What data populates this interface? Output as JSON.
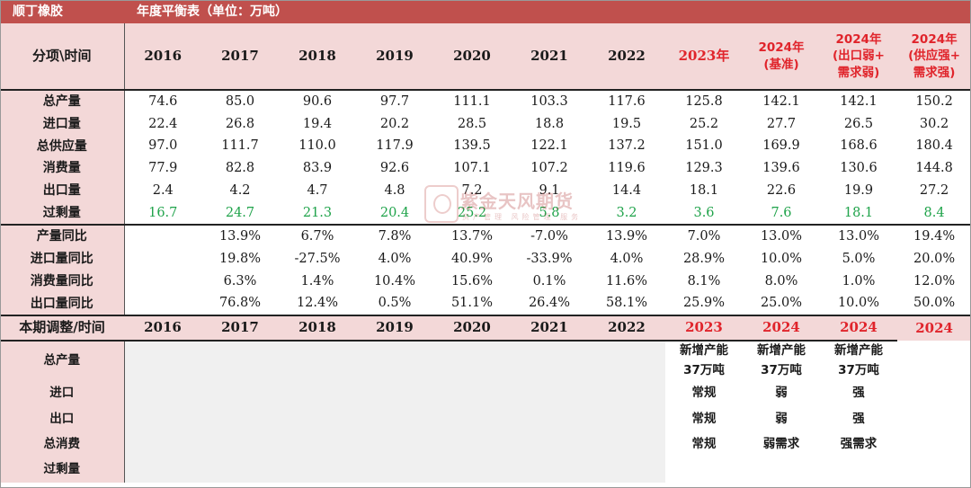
{
  "title": {
    "left": "顺丁橡胶",
    "right": "年度平衡表（单位：万吨）"
  },
  "header": {
    "label": "分项\\时间",
    "years": [
      {
        "text": "2016",
        "red": false
      },
      {
        "text": "2017",
        "red": false
      },
      {
        "text": "2018",
        "red": false
      },
      {
        "text": "2019",
        "red": false
      },
      {
        "text": "2020",
        "red": false
      },
      {
        "text": "2021",
        "red": false
      },
      {
        "text": "2022",
        "red": false
      },
      {
        "text": "2023年",
        "red": true
      },
      {
        "text": "2024年\n(基准)",
        "red": true
      },
      {
        "text": "2024年\n(出口弱+\n需求弱)",
        "red": true
      },
      {
        "text": "2024年\n(供应强+\n需求强)",
        "red": true
      }
    ]
  },
  "balance_rows": [
    {
      "label": "总产量",
      "values": [
        "74.6",
        "85.0",
        "90.6",
        "97.7",
        "111.1",
        "103.3",
        "117.6",
        "125.8",
        "142.1",
        "142.1",
        "150.2"
      ]
    },
    {
      "label": "进口量",
      "values": [
        "22.4",
        "26.8",
        "19.4",
        "20.2",
        "28.5",
        "18.8",
        "19.5",
        "25.2",
        "27.7",
        "26.5",
        "30.2"
      ]
    },
    {
      "label": "总供应量",
      "values": [
        "97.0",
        "111.7",
        "110.0",
        "117.9",
        "139.5",
        "122.1",
        "137.2",
        "151.0",
        "169.9",
        "168.6",
        "180.4"
      ]
    },
    {
      "label": "消费量",
      "values": [
        "77.9",
        "82.8",
        "83.9",
        "92.6",
        "107.1",
        "107.2",
        "119.6",
        "129.3",
        "139.6",
        "130.6",
        "144.8"
      ]
    },
    {
      "label": "出口量",
      "values": [
        "2.4",
        "4.2",
        "4.7",
        "4.8",
        "7.2",
        "9.1",
        "14.4",
        "18.1",
        "22.6",
        "19.9",
        "27.2"
      ]
    },
    {
      "label": "过剩量",
      "values": [
        "16.7",
        "24.7",
        "21.3",
        "20.4",
        "25.2",
        "5.8",
        "3.2",
        "3.6",
        "7.6",
        "18.1",
        "8.4"
      ],
      "green": true
    }
  ],
  "yoy_rows": [
    {
      "label": "产量同比",
      "values": [
        "",
        "13.9%",
        "6.7%",
        "7.8%",
        "13.7%",
        "-7.0%",
        "13.9%",
        "7.0%",
        "13.0%",
        "13.0%",
        "19.4%"
      ]
    },
    {
      "label": "进口量同比",
      "values": [
        "",
        "19.8%",
        "-27.5%",
        "4.0%",
        "40.9%",
        "-33.9%",
        "4.0%",
        "28.9%",
        "10.0%",
        "5.0%",
        "20.0%"
      ]
    },
    {
      "label": "消费量同比",
      "values": [
        "",
        "6.3%",
        "1.4%",
        "10.4%",
        "15.6%",
        "0.1%",
        "11.6%",
        "8.1%",
        "8.0%",
        "1.0%",
        "12.0%"
      ]
    },
    {
      "label": "出口量同比",
      "values": [
        "",
        "76.8%",
        "12.4%",
        "0.5%",
        "51.1%",
        "26.4%",
        "58.1%",
        "25.9%",
        "25.0%",
        "10.0%",
        "50.0%"
      ]
    }
  ],
  "adjust": {
    "label": "本期调整/时间",
    "years": [
      {
        "text": "2016",
        "red": false
      },
      {
        "text": "2017",
        "red": false
      },
      {
        "text": "2018",
        "red": false
      },
      {
        "text": "2019",
        "red": false
      },
      {
        "text": "2020",
        "red": false
      },
      {
        "text": "2021",
        "red": false
      },
      {
        "text": "2022",
        "red": false
      },
      {
        "text": "2023",
        "red": true
      },
      {
        "text": "2024",
        "red": true
      },
      {
        "text": "2024",
        "red": true
      },
      {
        "text": "2024",
        "red": true
      }
    ]
  },
  "notes": [
    {
      "label": "总产量",
      "values": [
        "新增产能\n37万吨",
        "新增产能\n37万吨",
        "新增产能\n37万吨"
      ]
    },
    {
      "label": "进口",
      "values": [
        "常规",
        "弱",
        "强"
      ]
    },
    {
      "label": "出口",
      "values": [
        "常规",
        "弱",
        "强"
      ]
    },
    {
      "label": "总消费",
      "values": [
        "常规",
        "弱需求",
        "强需求"
      ]
    },
    {
      "label": "过剩量",
      "values": [
        "",
        "",
        ""
      ]
    }
  ],
  "watermark": {
    "name": "紫金天风期货",
    "tagline": "资产管理 风险管理 服务"
  },
  "colors": {
    "header_bg": "#c0504d",
    "label_bg": "#f3d8d8",
    "red_text": "#e0242b",
    "green_text": "#1fa34a"
  }
}
